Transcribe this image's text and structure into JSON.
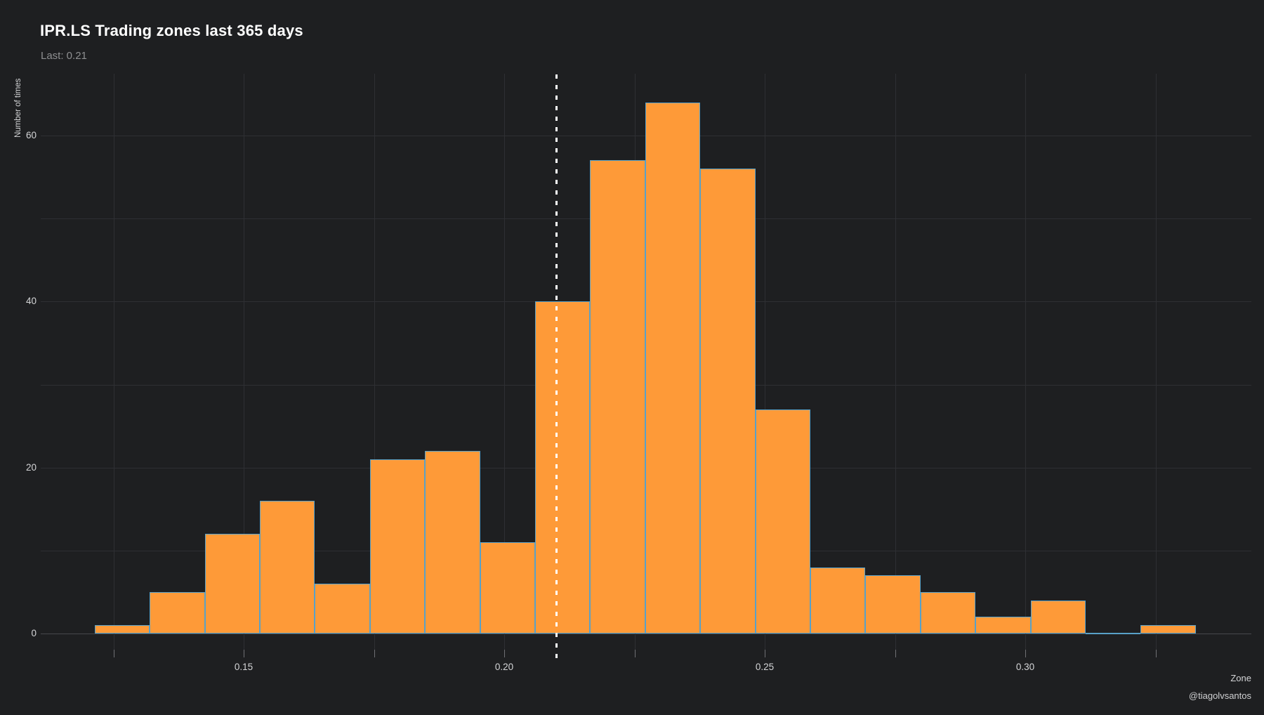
{
  "header": {
    "title": "IPR.LS Trading zones last 365 days",
    "subtitle": "Last: 0.21"
  },
  "watermark": "@tiagolvsantos",
  "chart_data": {
    "type": "bar",
    "subtype": "histogram",
    "title": "IPR.LS Trading zones last 365 days",
    "subtitle": "Last: 0.21",
    "xlabel": "Zone",
    "ylabel": "Number of times",
    "last_value": 0.21,
    "total_observations": 365,
    "bin_start": 0.1214,
    "bin_width": 0.010566,
    "counts": [
      1,
      5,
      12,
      16,
      6,
      21,
      22,
      11,
      40,
      57,
      64,
      56,
      27,
      8,
      7,
      5,
      2,
      4,
      0,
      1
    ],
    "x_ticks": [
      0.15,
      0.2,
      0.25,
      0.3
    ],
    "x_tick_labels": [
      "0.15",
      "0.20",
      "0.25",
      "0.30"
    ],
    "x_minor_grid": [
      0.125,
      0.15,
      0.175,
      0.2,
      0.225,
      0.25,
      0.275,
      0.3,
      0.325
    ],
    "y_ticks": [
      0,
      20,
      40,
      60
    ],
    "y_tick_labels": [
      "0",
      "20",
      "40",
      "60"
    ],
    "y_grid": [
      10,
      20,
      30,
      40,
      50,
      60
    ],
    "xlim": [
      0.111,
      0.343
    ],
    "ylim": [
      -2.4,
      67.5
    ],
    "grid": true,
    "legend_position": "none",
    "colors": {
      "background": "#1e1f21",
      "bar_fill": "#fe9a38",
      "bar_border": "#58a1c8",
      "grid": "#2e2f33",
      "zero_line": "#47484c",
      "title": "#ffffff",
      "subtitle": "#8e8f91",
      "tick_label": "#d4d5d7",
      "last_line": "#ffffff"
    }
  }
}
